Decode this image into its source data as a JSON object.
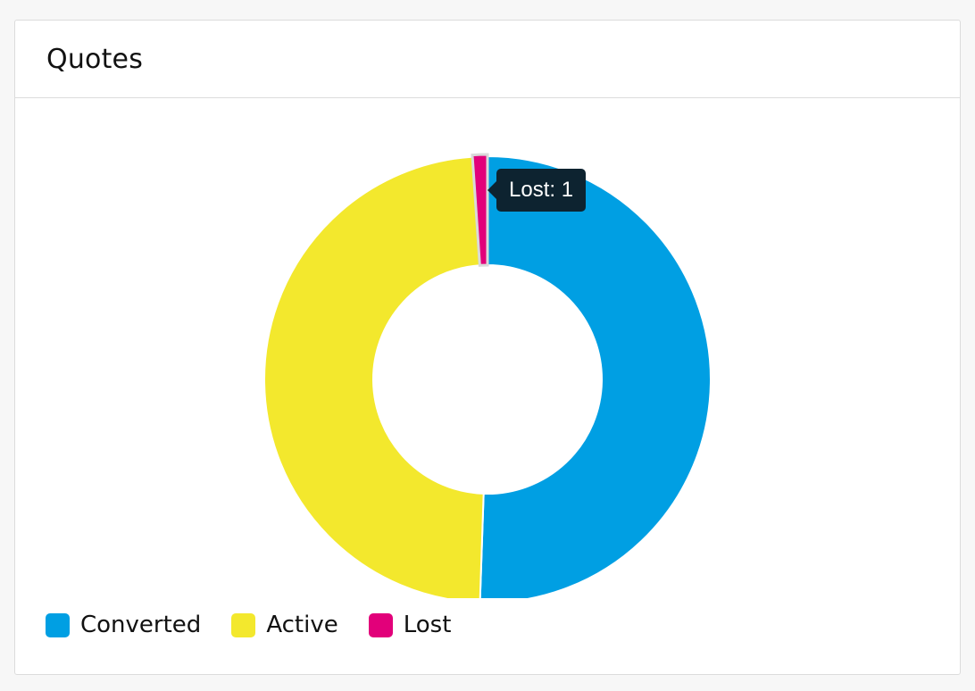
{
  "card": {
    "title": "Quotes"
  },
  "chart_data": {
    "type": "pie",
    "variant": "doughnut",
    "title": "",
    "categories": [
      "Converted",
      "Active",
      "Lost"
    ],
    "values": [
      47,
      45,
      1
    ],
    "colors": [
      "#009fe3",
      "#f3e82d",
      "#e2007a"
    ],
    "hovered_index": 2,
    "legend_position": "bottom-left"
  },
  "tooltip": {
    "text": "Lost: 1"
  }
}
